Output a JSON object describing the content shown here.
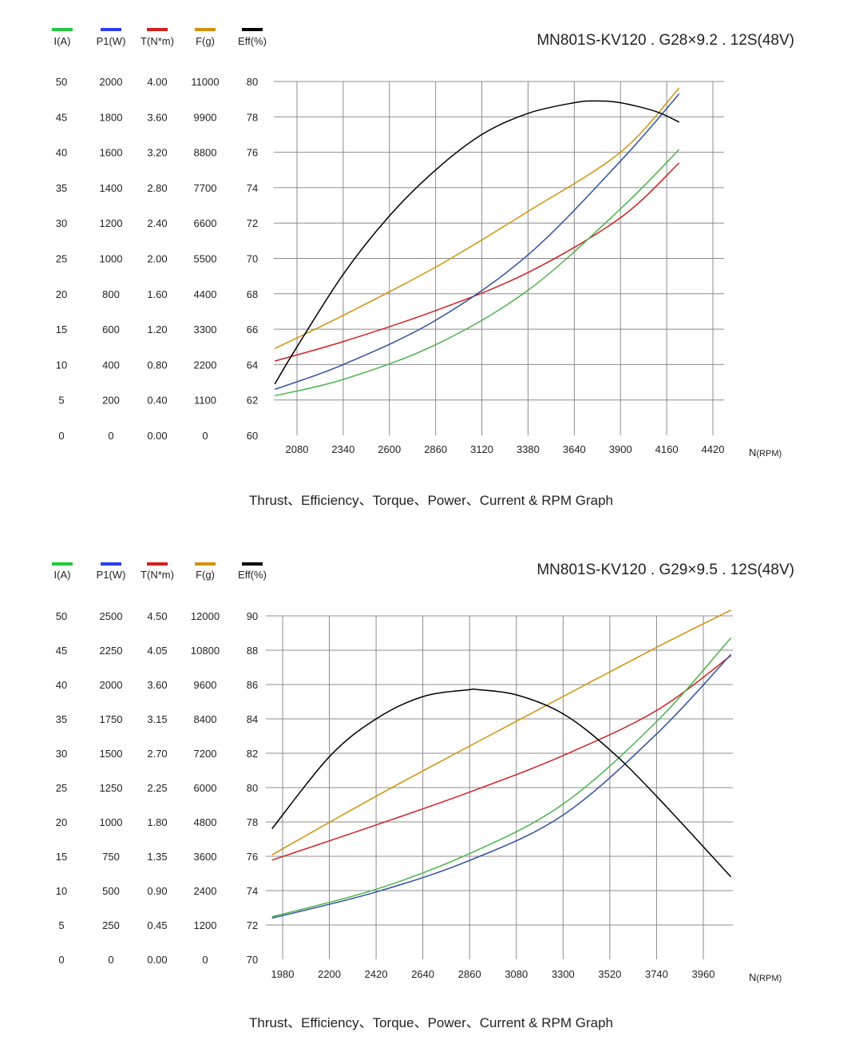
{
  "chart_data": [
    {
      "type": "line",
      "title": "MN801S-KV120 . G28×9.2 . 12S(48V)",
      "caption": "Thrust、Efficiency、Torque、Power、Current & RPM Graph",
      "xlabel": "N",
      "xlabel_unit": "(RPM)",
      "x_ticks": [
        "2080",
        "2340",
        "2600",
        "2860",
        "3120",
        "3380",
        "3640",
        "3900",
        "4160",
        "4420"
      ],
      "xlim": [
        1940,
        4420
      ],
      "grid": true,
      "legend": [
        {
          "key": "I",
          "label": "I(A)",
          "color": "#22c93e"
        },
        {
          "key": "P1",
          "label": "P1(W)",
          "color": "#2b3cf0"
        },
        {
          "key": "T",
          "label": "T(N*m)",
          "color": "#d21f1f"
        },
        {
          "key": "F",
          "label": "F(g)",
          "color": "#d4900a"
        },
        {
          "key": "Eff",
          "label": "Eff(%)",
          "color": "#000000"
        }
      ],
      "y_axes": [
        {
          "key": "I",
          "ticks": [
            "0",
            "5",
            "10",
            "15",
            "20",
            "25",
            "30",
            "35",
            "40",
            "45",
            "50"
          ],
          "ylim": [
            0,
            50
          ]
        },
        {
          "key": "P1",
          "ticks": [
            "0",
            "200",
            "400",
            "600",
            "800",
            "1000",
            "1200",
            "1400",
            "1600",
            "1800",
            "2000"
          ],
          "ylim": [
            0,
            2000
          ]
        },
        {
          "key": "T",
          "ticks": [
            "0.00",
            "0.40",
            "0.80",
            "1.20",
            "1.60",
            "2.00",
            "2.40",
            "2.80",
            "3.20",
            "3.60",
            "4.00"
          ],
          "ylim": [
            0,
            4
          ]
        },
        {
          "key": "F",
          "ticks": [
            "0",
            "1100",
            "2200",
            "3300",
            "4400",
            "5500",
            "6600",
            "7700",
            "8800",
            "9900",
            "11000"
          ],
          "ylim": [
            0,
            11000
          ]
        },
        {
          "key": "Eff",
          "ticks": [
            "60",
            "62",
            "64",
            "66",
            "68",
            "70",
            "72",
            "74",
            "76",
            "78",
            "80"
          ],
          "ylim": [
            60,
            80
          ]
        }
      ],
      "series": [
        {
          "key": "F",
          "color": "#d4900a",
          "x": [
            1955,
            2340,
            2860,
            3380,
            3900,
            4230
          ],
          "y": [
            2700,
            3730,
            5230,
            6960,
            8800,
            10800
          ]
        },
        {
          "key": "T",
          "color": "#d21f1f",
          "x": [
            1955,
            2340,
            2860,
            3380,
            3900,
            4230
          ],
          "y": [
            0.84,
            1.06,
            1.41,
            1.84,
            2.46,
            3.08
          ]
        },
        {
          "key": "P1",
          "color": "#2f4fa0",
          "x": [
            1955,
            2340,
            2860,
            3380,
            3900,
            4230
          ],
          "y": [
            260,
            400,
            650,
            1020,
            1550,
            1930
          ]
        },
        {
          "key": "I",
          "color": "#4ab34a",
          "x": [
            1955,
            2340,
            2860,
            3380,
            3900,
            4230
          ],
          "y": [
            5.6,
            7.9,
            12.8,
            20.5,
            32.0,
            40.4
          ]
        },
        {
          "key": "Eff",
          "color": "#000000",
          "x": [
            1955,
            2080,
            2340,
            2600,
            2860,
            3120,
            3380,
            3640,
            3760,
            3900,
            4100,
            4230
          ],
          "y": [
            62.9,
            65.0,
            69.1,
            72.4,
            75.0,
            77.0,
            78.2,
            78.8,
            78.9,
            78.8,
            78.3,
            77.7
          ]
        }
      ]
    },
    {
      "type": "line",
      "title": "MN801S-KV120 . G29×9.5 . 12S(48V)",
      "caption": "Thrust、Efficiency、Torque、Power、Current & RPM Graph",
      "xlabel": "N",
      "xlabel_unit": "(RPM)",
      "x_ticks": [
        "1980",
        "2200",
        "2420",
        "2640",
        "2860",
        "3080",
        "3300",
        "3520",
        "3740",
        "3960"
      ],
      "xlim": [
        1900,
        4100
      ],
      "grid": true,
      "legend": [
        {
          "key": "I",
          "label": "I(A)",
          "color": "#22c93e"
        },
        {
          "key": "P1",
          "label": "P1(W)",
          "color": "#2b3cf0"
        },
        {
          "key": "T",
          "label": "T(N*m)",
          "color": "#d21f1f"
        },
        {
          "key": "F",
          "label": "F(g)",
          "color": "#d4900a"
        },
        {
          "key": "Eff",
          "label": "Eff(%)",
          "color": "#000000"
        }
      ],
      "y_axes": [
        {
          "key": "I",
          "ticks": [
            "0",
            "5",
            "10",
            "15",
            "20",
            "25",
            "30",
            "35",
            "40",
            "45",
            "50"
          ],
          "ylim": [
            0,
            50
          ]
        },
        {
          "key": "P1",
          "ticks": [
            "0",
            "250",
            "500",
            "750",
            "1000",
            "1250",
            "1500",
            "1750",
            "2000",
            "2250",
            "2500"
          ],
          "ylim": [
            0,
            2500
          ]
        },
        {
          "key": "T",
          "ticks": [
            "0.00",
            "0.45",
            "0.90",
            "1.35",
            "1.80",
            "2.25",
            "2.70",
            "3.15",
            "3.60",
            "4.05",
            "4.50"
          ],
          "ylim": [
            0,
            4.5
          ]
        },
        {
          "key": "F",
          "ticks": [
            "0",
            "1200",
            "2400",
            "3600",
            "4800",
            "6000",
            "7200",
            "8400",
            "9600",
            "10800",
            "12000"
          ],
          "ylim": [
            0,
            12000
          ]
        },
        {
          "key": "Eff",
          "ticks": [
            "70",
            "72",
            "74",
            "76",
            "78",
            "80",
            "82",
            "84",
            "86",
            "88",
            "90"
          ],
          "ylim": [
            70,
            90
          ]
        }
      ],
      "series": [
        {
          "key": "F",
          "color": "#d4900a",
          "x": [
            1930,
            2420,
            2860,
            3300,
            3740,
            4090
          ],
          "y": [
            3650,
            5700,
            7450,
            9180,
            10900,
            12200
          ]
        },
        {
          "key": "T",
          "color": "#d21f1f",
          "x": [
            1930,
            2420,
            2860,
            3300,
            3740,
            4090
          ],
          "y": [
            1.3,
            1.76,
            2.19,
            2.67,
            3.26,
            3.98
          ]
        },
        {
          "key": "P1",
          "color": "#2f4fa0",
          "x": [
            1930,
            2420,
            2860,
            3300,
            3740,
            4090
          ],
          "y": [
            300,
            490,
            720,
            1050,
            1640,
            2220
          ]
        },
        {
          "key": "I",
          "color": "#4ab34a",
          "x": [
            1930,
            2420,
            2860,
            3300,
            3740,
            4090
          ],
          "y": [
            6.2,
            10.2,
            15.4,
            22.6,
            34.6,
            46.8
          ]
        },
        {
          "key": "Eff",
          "color": "#000000",
          "x": [
            1930,
            2200,
            2420,
            2640,
            2860,
            2900,
            3080,
            3300,
            3520,
            3740,
            4090
          ],
          "y": [
            77.6,
            81.8,
            84.0,
            85.3,
            85.7,
            85.7,
            85.4,
            84.3,
            82.2,
            79.5,
            74.8
          ]
        }
      ]
    }
  ]
}
